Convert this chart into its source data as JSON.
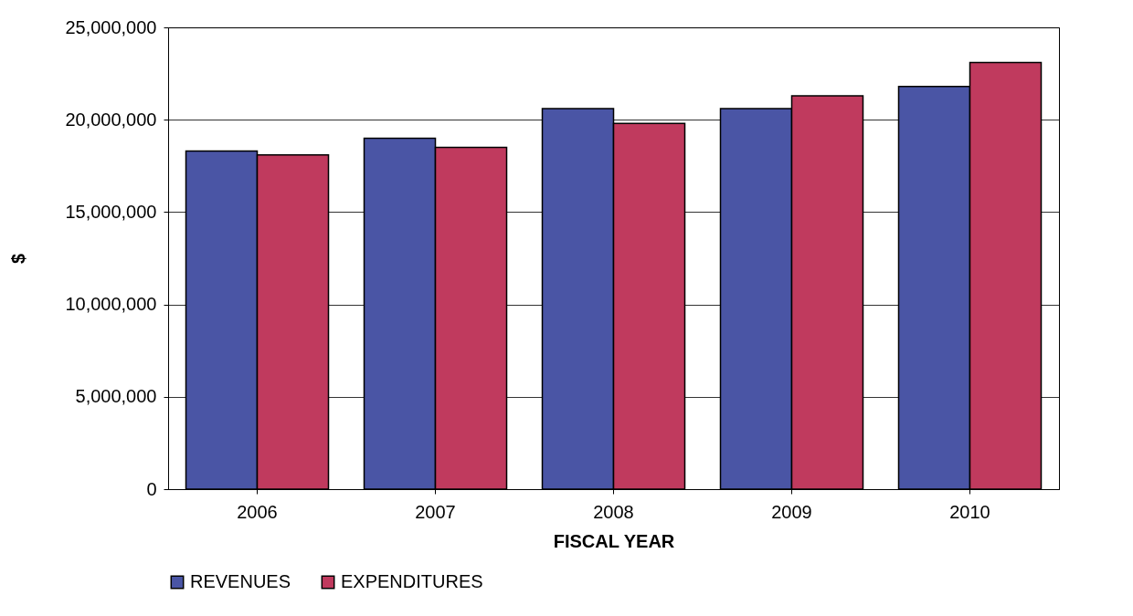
{
  "chart_data": {
    "type": "bar",
    "xlabel": "FISCAL YEAR",
    "ylabel": "$",
    "categories": [
      "2006",
      "2007",
      "2008",
      "2009",
      "2010"
    ],
    "series": [
      {
        "name": "REVENUES",
        "color": "#4a55a5",
        "values": [
          18300000,
          19000000,
          20600000,
          20600000,
          21800000
        ]
      },
      {
        "name": "EXPENDITURES",
        "color": "#c03a5e",
        "values": [
          18100000,
          18500000,
          19800000,
          21300000,
          23100000
        ]
      }
    ],
    "ylim": [
      0,
      25000000
    ],
    "yticks": [
      {
        "value": 0,
        "label": "0"
      },
      {
        "value": 5000000,
        "label": "5,000,000"
      },
      {
        "value": 10000000,
        "label": "10,000,000"
      },
      {
        "value": 15000000,
        "label": "15,000,000"
      },
      {
        "value": 20000000,
        "label": "20,000,000"
      },
      {
        "value": 25000000,
        "label": "25,000,000"
      }
    ],
    "grid": "y",
    "legend": "bottom"
  }
}
